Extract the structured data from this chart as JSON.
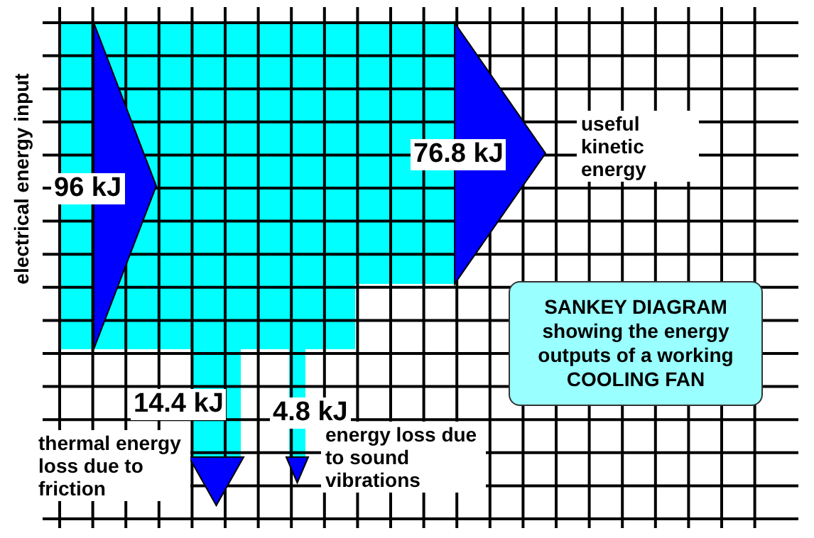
{
  "chart_data": {
    "type": "other",
    "title": "SANKEY DIAGRAM showing the energy outputs of a working COOLING FAN",
    "ylabel": "electrical energy input",
    "annotations": [
      "96 kJ"
    ],
    "categories": [
      "useful kinetic energy",
      "thermal energy loss due to friction",
      "energy loss due to sound vibrations"
    ],
    "values": [
      76.8,
      14.4,
      4.8
    ],
    "value_labels": [
      "76.8 kJ",
      "14.4 kJ",
      "4.8 kJ"
    ]
  }
}
